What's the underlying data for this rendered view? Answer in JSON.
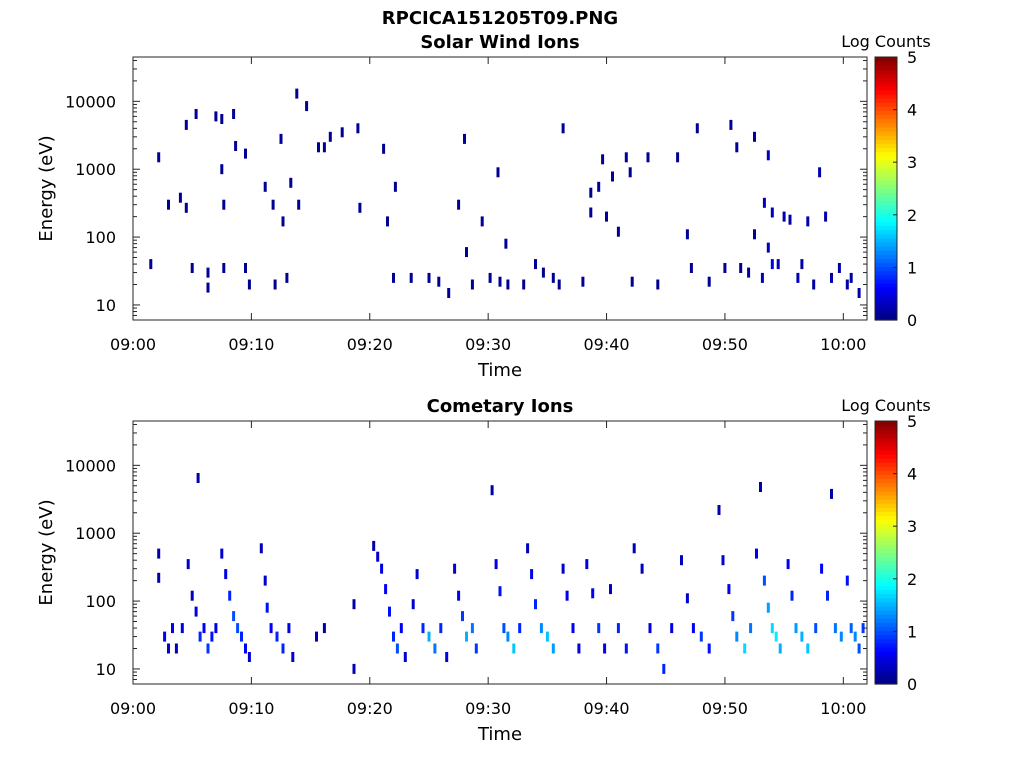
{
  "figure": {
    "title": "RPCICA151205T09.PNG"
  },
  "chart_data": [
    {
      "type": "heatmap",
      "title": "Solar Wind Ions",
      "xlabel": "Time",
      "ylabel": "Energy (eV)",
      "x_ticks": [
        "09:00",
        "09:10",
        "09:20",
        "09:30",
        "09:40",
        "09:50",
        "10:00"
      ],
      "xlim": [
        "09:00",
        "10:02"
      ],
      "y_scale": "log",
      "y_ticks": [
        "10",
        "100",
        "1000",
        "10000"
      ],
      "ylim": [
        6,
        45000
      ],
      "colorbar": {
        "label": "Log Counts",
        "ticks": [
          "0",
          "1",
          "2",
          "3",
          "4",
          "5"
        ],
        "range": [
          0,
          5
        ],
        "colormap": "jet"
      },
      "grid": false,
      "cells": [
        [
          "09:01:30",
          40,
          0.1
        ],
        [
          "09:02:10",
          1500,
          0.1
        ],
        [
          "09:03:00",
          300,
          0.1
        ],
        [
          "09:04:00",
          380,
          0.1
        ],
        [
          "09:04:30",
          4500,
          0.1
        ],
        [
          "09:04:30",
          270,
          0.1
        ],
        [
          "09:05:00",
          35,
          0.1
        ],
        [
          "09:05:20",
          6500,
          0.1
        ],
        [
          "09:06:20",
          30,
          0.1
        ],
        [
          "09:06:20",
          18,
          0.1
        ],
        [
          "09:07:00",
          6000,
          0.1
        ],
        [
          "09:07:30",
          5500,
          0.1
        ],
        [
          "09:07:30",
          1000,
          0.1
        ],
        [
          "09:07:40",
          300,
          0.1
        ],
        [
          "09:07:40",
          35,
          0.1
        ],
        [
          "09:08:30",
          6500,
          0.1
        ],
        [
          "09:08:40",
          2200,
          0.1
        ],
        [
          "09:09:30",
          1700,
          0.1
        ],
        [
          "09:09:30",
          35,
          0.1
        ],
        [
          "09:09:50",
          20,
          0.1
        ],
        [
          "09:11:10",
          550,
          0.1
        ],
        [
          "09:11:50",
          300,
          0.1
        ],
        [
          "09:12:00",
          20,
          0.1
        ],
        [
          "09:12:30",
          2800,
          0.1
        ],
        [
          "09:12:40",
          170,
          0.1
        ],
        [
          "09:13:00",
          25,
          0.1
        ],
        [
          "09:13:20",
          630,
          0.1
        ],
        [
          "09:13:50",
          13000,
          0.1
        ],
        [
          "09:14:00",
          300,
          0.1
        ],
        [
          "09:14:40",
          8500,
          0.1
        ],
        [
          "09:15:40",
          2100,
          0.1
        ],
        [
          "09:16:10",
          2100,
          0.1
        ],
        [
          "09:16:40",
          3000,
          0.1
        ],
        [
          "09:17:40",
          3500,
          0.1
        ],
        [
          "09:19:00",
          4000,
          0.1
        ],
        [
          "09:19:10",
          270,
          0.1
        ],
        [
          "09:21:10",
          2000,
          0.1
        ],
        [
          "09:21:30",
          170,
          0.1
        ],
        [
          "09:22:00",
          25,
          0.1
        ],
        [
          "09:22:10",
          550,
          0.1
        ],
        [
          "09:23:30",
          25,
          0.1
        ],
        [
          "09:25:00",
          25,
          0.1
        ],
        [
          "09:25:50",
          22,
          0.1
        ],
        [
          "09:26:40",
          15,
          0.1
        ],
        [
          "09:27:30",
          300,
          0.1
        ],
        [
          "09:28:00",
          2800,
          0.1
        ],
        [
          "09:28:10",
          60,
          0.1
        ],
        [
          "09:28:40",
          20,
          0.1
        ],
        [
          "09:29:30",
          170,
          0.1
        ],
        [
          "09:30:10",
          25,
          0.1
        ],
        [
          "09:30:50",
          900,
          0.1
        ],
        [
          "09:31:00",
          22,
          0.1
        ],
        [
          "09:31:30",
          80,
          0.1
        ],
        [
          "09:31:40",
          20,
          0.1
        ],
        [
          "09:33:00",
          20,
          0.1
        ],
        [
          "09:34:00",
          40,
          0.1
        ],
        [
          "09:34:40",
          30,
          0.1
        ],
        [
          "09:35:30",
          25,
          0.1
        ],
        [
          "09:36:00",
          20,
          0.1
        ],
        [
          "09:36:20",
          4000,
          0.1
        ],
        [
          "09:38:00",
          22,
          0.1
        ],
        [
          "09:38:40",
          230,
          0.1
        ],
        [
          "09:38:40",
          450,
          0.1
        ],
        [
          "09:39:20",
          550,
          0.1
        ],
        [
          "09:39:40",
          1400,
          0.1
        ],
        [
          "09:40:00",
          200,
          0.1
        ],
        [
          "09:40:30",
          780,
          0.1
        ],
        [
          "09:41:00",
          120,
          0.1
        ],
        [
          "09:41:40",
          1500,
          0.1
        ],
        [
          "09:42:00",
          900,
          0.1
        ],
        [
          "09:42:10",
          22,
          0.1
        ],
        [
          "09:43:30",
          1500,
          0.1
        ],
        [
          "09:44:20",
          20,
          0.1
        ],
        [
          "09:46:00",
          1500,
          0.1
        ],
        [
          "09:46:50",
          110,
          0.1
        ],
        [
          "09:47:10",
          35,
          0.1
        ],
        [
          "09:47:40",
          4000,
          0.1
        ],
        [
          "09:48:40",
          22,
          0.1
        ],
        [
          "09:50:00",
          35,
          0.1
        ],
        [
          "09:50:30",
          4500,
          0.1
        ],
        [
          "09:51:00",
          2100,
          0.1
        ],
        [
          "09:51:20",
          35,
          0.1
        ],
        [
          "09:52:00",
          30,
          0.1
        ],
        [
          "09:52:30",
          3000,
          0.1
        ],
        [
          "09:52:30",
          110,
          0.1
        ],
        [
          "09:53:10",
          25,
          0.3
        ],
        [
          "09:53:20",
          320,
          0.3
        ],
        [
          "09:53:40",
          1600,
          0.3
        ],
        [
          "09:53:40",
          70,
          0.3
        ],
        [
          "09:54:00",
          40,
          0.5
        ],
        [
          "09:54:00",
          230,
          0.3
        ],
        [
          "09:54:30",
          40,
          0.3
        ],
        [
          "09:55:00",
          200,
          0.2
        ],
        [
          "09:55:30",
          180,
          0.2
        ],
        [
          "09:56:10",
          25,
          0.3
        ],
        [
          "09:56:30",
          40,
          0.2
        ],
        [
          "09:57:00",
          170,
          0.2
        ],
        [
          "09:57:30",
          20,
          0.2
        ],
        [
          "09:58:00",
          900,
          0.2
        ],
        [
          "09:58:30",
          200,
          0.2
        ],
        [
          "09:59:00",
          25,
          0.2
        ],
        [
          "09:59:40",
          35,
          0.2
        ],
        [
          "10:00:20",
          20,
          0.2
        ],
        [
          "10:00:40",
          25,
          0.2
        ],
        [
          "10:01:20",
          15,
          0.2
        ]
      ]
    },
    {
      "type": "heatmap",
      "title": "Cometary Ions",
      "xlabel": "Time",
      "ylabel": "Energy (eV)",
      "x_ticks": [
        "09:00",
        "09:10",
        "09:20",
        "09:30",
        "09:40",
        "09:50",
        "10:00"
      ],
      "xlim": [
        "09:00",
        "10:02"
      ],
      "y_scale": "log",
      "y_ticks": [
        "10",
        "100",
        "1000",
        "10000"
      ],
      "ylim": [
        6,
        45000
      ],
      "colorbar": {
        "label": "Log Counts",
        "ticks": [
          "0",
          "1",
          "2",
          "3",
          "4",
          "5"
        ],
        "range": [
          0,
          5
        ],
        "colormap": "jet"
      },
      "grid": false,
      "cells": [
        [
          "09:02:10",
          500,
          0.2
        ],
        [
          "09:02:10",
          220,
          0.2
        ],
        [
          "09:02:40",
          30,
          0.6
        ],
        [
          "09:03:00",
          20,
          0.4
        ],
        [
          "09:03:20",
          40,
          0.6
        ],
        [
          "09:03:40",
          20,
          0.3
        ],
        [
          "09:04:10",
          40,
          0.5
        ],
        [
          "09:04:40",
          350,
          0.4
        ],
        [
          "09:05:00",
          120,
          0.3
        ],
        [
          "09:05:20",
          70,
          0.5
        ],
        [
          "09:05:30",
          6500,
          0.2
        ],
        [
          "09:05:40",
          30,
          0.8
        ],
        [
          "09:06:00",
          40,
          0.6
        ],
        [
          "09:06:20",
          20,
          0.9
        ],
        [
          "09:06:40",
          30,
          0.7
        ],
        [
          "09:07:00",
          40,
          0.5
        ],
        [
          "09:07:30",
          500,
          0.4
        ],
        [
          "09:07:50",
          250,
          0.5
        ],
        [
          "09:08:10",
          120,
          0.8
        ],
        [
          "09:08:30",
          60,
          1.0
        ],
        [
          "09:08:50",
          40,
          1.0
        ],
        [
          "09:09:10",
          30,
          0.8
        ],
        [
          "09:09:30",
          20,
          0.6
        ],
        [
          "09:09:50",
          15,
          0.4
        ],
        [
          "09:10:50",
          600,
          0.3
        ],
        [
          "09:11:10",
          200,
          0.4
        ],
        [
          "09:11:20",
          80,
          0.7
        ],
        [
          "09:11:40",
          40,
          0.6
        ],
        [
          "09:12:10",
          30,
          0.8
        ],
        [
          "09:12:40",
          20,
          0.8
        ],
        [
          "09:13:10",
          40,
          0.5
        ],
        [
          "09:13:30",
          15,
          0.4
        ],
        [
          "09:15:30",
          30,
          0.3
        ],
        [
          "09:16:10",
          40,
          0.2
        ],
        [
          "09:18:40",
          90,
          0.2
        ],
        [
          "09:18:40",
          10,
          0.3
        ],
        [
          "09:20:20",
          650,
          0.2
        ],
        [
          "09:20:40",
          450,
          0.4
        ],
        [
          "09:21:00",
          300,
          0.5
        ],
        [
          "09:21:20",
          150,
          0.6
        ],
        [
          "09:21:40",
          70,
          0.7
        ],
        [
          "09:22:00",
          30,
          0.8
        ],
        [
          "09:22:20",
          20,
          1.0
        ],
        [
          "09:22:40",
          40,
          0.6
        ],
        [
          "09:23:00",
          15,
          0.4
        ],
        [
          "09:23:40",
          90,
          0.4
        ],
        [
          "09:24:00",
          250,
          0.4
        ],
        [
          "09:24:30",
          40,
          0.8
        ],
        [
          "09:25:00",
          30,
          1.5
        ],
        [
          "09:25:30",
          20,
          1.2
        ],
        [
          "09:26:00",
          40,
          0.8
        ],
        [
          "09:26:30",
          15,
          0.5
        ],
        [
          "09:27:10",
          300,
          0.4
        ],
        [
          "09:27:30",
          120,
          0.6
        ],
        [
          "09:27:50",
          60,
          0.9
        ],
        [
          "09:28:10",
          30,
          1.5
        ],
        [
          "09:28:40",
          40,
          1.2
        ],
        [
          "09:29:00",
          20,
          0.9
        ],
        [
          "09:30:20",
          4300,
          0.2
        ],
        [
          "09:30:40",
          350,
          0.5
        ],
        [
          "09:31:00",
          140,
          0.7
        ],
        [
          "09:31:20",
          40,
          1.0
        ],
        [
          "09:31:40",
          30,
          1.3
        ],
        [
          "09:32:10",
          20,
          1.6
        ],
        [
          "09:32:40",
          40,
          0.8
        ],
        [
          "09:33:20",
          600,
          0.3
        ],
        [
          "09:33:40",
          250,
          0.5
        ],
        [
          "09:34:00",
          90,
          0.8
        ],
        [
          "09:34:30",
          40,
          1.3
        ],
        [
          "09:35:00",
          30,
          1.6
        ],
        [
          "09:35:30",
          20,
          1.4
        ],
        [
          "09:36:20",
          300,
          0.4
        ],
        [
          "09:36:40",
          120,
          0.5
        ],
        [
          "09:37:10",
          40,
          0.6
        ],
        [
          "09:37:40",
          20,
          0.5
        ],
        [
          "09:38:20",
          350,
          0.5
        ],
        [
          "09:38:50",
          130,
          0.6
        ],
        [
          "09:39:20",
          40,
          0.9
        ],
        [
          "09:39:50",
          20,
          0.6
        ],
        [
          "09:40:20",
          150,
          0.4
        ],
        [
          "09:41:00",
          40,
          0.8
        ],
        [
          "09:41:40",
          20,
          0.7
        ],
        [
          "09:42:20",
          600,
          0.3
        ],
        [
          "09:43:00",
          300,
          0.3
        ],
        [
          "09:43:40",
          40,
          0.5
        ],
        [
          "09:44:20",
          20,
          0.9
        ],
        [
          "09:44:50",
          10,
          0.8
        ],
        [
          "09:45:30",
          40,
          0.5
        ],
        [
          "09:46:20",
          400,
          0.3
        ],
        [
          "09:46:50",
          110,
          0.4
        ],
        [
          "09:47:20",
          40,
          0.6
        ],
        [
          "09:48:00",
          30,
          0.9
        ],
        [
          "09:48:40",
          20,
          0.7
        ],
        [
          "09:49:30",
          2200,
          0.2
        ],
        [
          "09:49:50",
          400,
          0.4
        ],
        [
          "09:50:20",
          150,
          0.6
        ],
        [
          "09:50:40",
          60,
          0.9
        ],
        [
          "09:51:00",
          30,
          1.3
        ],
        [
          "09:51:40",
          20,
          1.7
        ],
        [
          "09:52:10",
          40,
          1.2
        ],
        [
          "09:52:40",
          500,
          0.5
        ],
        [
          "09:53:00",
          4800,
          0.2
        ],
        [
          "09:53:20",
          200,
          1.0
        ],
        [
          "09:53:40",
          80,
          1.4
        ],
        [
          "09:54:00",
          40,
          1.7
        ],
        [
          "09:54:20",
          30,
          1.8
        ],
        [
          "09:54:40",
          20,
          1.5
        ],
        [
          "09:55:20",
          350,
          0.6
        ],
        [
          "09:55:40",
          120,
          0.8
        ],
        [
          "09:56:00",
          40,
          1.4
        ],
        [
          "09:56:30",
          30,
          1.5
        ],
        [
          "09:57:00",
          20,
          1.6
        ],
        [
          "09:57:40",
          40,
          1.0
        ],
        [
          "09:58:10",
          300,
          0.6
        ],
        [
          "09:58:40",
          120,
          0.8
        ],
        [
          "09:59:00",
          3800,
          0.2
        ],
        [
          "09:59:20",
          40,
          1.2
        ],
        [
          "09:59:50",
          30,
          1.3
        ],
        [
          "10:00:20",
          200,
          0.7
        ],
        [
          "10:00:40",
          40,
          1.1
        ],
        [
          "10:01:00",
          30,
          1.3
        ],
        [
          "10:01:20",
          20,
          1.0
        ],
        [
          "10:01:40",
          40,
          0.9
        ]
      ]
    }
  ]
}
